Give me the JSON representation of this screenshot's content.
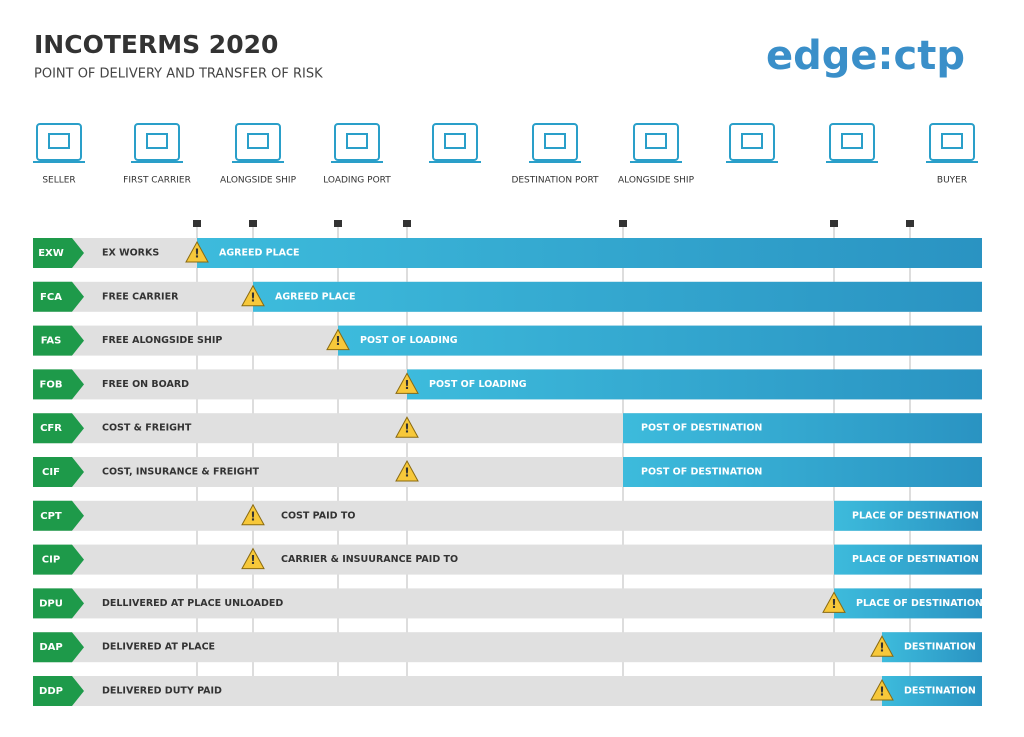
{
  "header": {
    "title": "INCOTERMS 2020",
    "subtitle": "POINT OF DELIVERY AND TRANSFER OF RISK",
    "logo": "edge:ctp"
  },
  "stages": [
    "SELLER",
    "FIRST CARRIER",
    "ALONGSIDE SHIP",
    "LOADING PORT",
    "DESTINATION PORT",
    "ALONGSIDE SHIP",
    "BUYER"
  ],
  "rows": [
    {
      "code": "EXW",
      "name": "EX WORKS",
      "label": "AGREED PLACE"
    },
    {
      "code": "FCA",
      "name": "FREE CARRIER",
      "label": "AGREED PLACE"
    },
    {
      "code": "FAS",
      "name": "FREE ALONGSIDE SHIP",
      "label": "POST OF LOADING"
    },
    {
      "code": "FOB",
      "name": "FREE ON BOARD",
      "label": "POST OF LOADING"
    },
    {
      "code": "CFR",
      "name": "COST & FREIGHT",
      "label": "POST OF DESTINATION"
    },
    {
      "code": "CIF",
      "name": "COST, INSURANCE & FREIGHT",
      "label": "POST OF DESTINATION"
    },
    {
      "code": "CPT",
      "name": "COST PAID TO",
      "label": "PLACE OF DESTINATION"
    },
    {
      "code": "CIP",
      "name": "CARRIER & INSUURANCE PAID TO",
      "label": "PLACE OF DESTINATION"
    },
    {
      "code": "DPU",
      "name": "DELLIVERED AT PLACE UNLOADED",
      "label": "PLACE OF DESTINATION"
    },
    {
      "code": "DAP",
      "name": "DELIVERED AT PLACE",
      "label": "DESTINATION"
    },
    {
      "code": "DDP",
      "name": "DELIVERED DUTY PAID",
      "label": "DESTINATION"
    }
  ]
}
